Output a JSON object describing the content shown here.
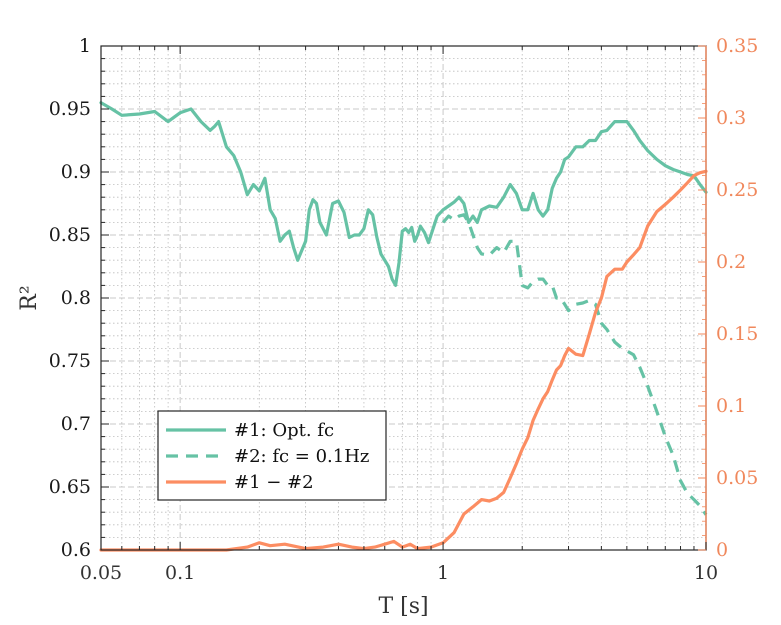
{
  "chart_data": {
    "type": "line",
    "xlabel": "T [s]",
    "ylabel_left": "R²",
    "x_scale": "log",
    "xlim": [
      0.05,
      10
    ],
    "ylim_left": [
      0.6,
      1
    ],
    "ylim_right": [
      0,
      0.35
    ],
    "grid": true,
    "legend_position": "bottom-left",
    "x_ticks": [
      {
        "value": 0.05,
        "label": "0.05"
      },
      {
        "value": 0.1,
        "label": "0.1"
      },
      {
        "value": 1,
        "label": "1"
      },
      {
        "value": 10,
        "label": "10"
      }
    ],
    "y_left_ticks": [
      "0.6",
      "0.65",
      "0.7",
      "0.75",
      "0.8",
      "0.85",
      "0.9",
      "0.95",
      "1"
    ],
    "y_right_ticks": [
      "0",
      "0.05",
      "0.1",
      "0.15",
      "0.2",
      "0.25",
      "0.3",
      "0.35"
    ],
    "colors": {
      "green": "#66c2a5",
      "orange": "#fc8d62",
      "right_axis": "#f0885c"
    },
    "series": [
      {
        "name": "#1: Opt. fc",
        "axis": "left",
        "style": "solid",
        "color": "#66c2a5",
        "x": [
          0.05,
          0.055,
          0.06,
          0.07,
          0.08,
          0.09,
          0.1,
          0.11,
          0.12,
          0.13,
          0.135,
          0.14,
          0.15,
          0.16,
          0.17,
          0.18,
          0.19,
          0.2,
          0.21,
          0.22,
          0.23,
          0.24,
          0.25,
          0.26,
          0.27,
          0.28,
          0.3,
          0.31,
          0.32,
          0.33,
          0.34,
          0.36,
          0.38,
          0.4,
          0.42,
          0.44,
          0.46,
          0.48,
          0.5,
          0.52,
          0.54,
          0.56,
          0.58,
          0.6,
          0.62,
          0.64,
          0.66,
          0.68,
          0.7,
          0.72,
          0.74,
          0.76,
          0.78,
          0.8,
          0.82,
          0.85,
          0.88,
          0.9,
          0.95,
          1.0,
          1.05,
          1.1,
          1.15,
          1.2,
          1.25,
          1.3,
          1.35,
          1.4,
          1.5,
          1.6,
          1.7,
          1.8,
          1.9,
          2.0,
          2.1,
          2.2,
          2.3,
          2.4,
          2.5,
          2.6,
          2.7,
          2.8,
          2.9,
          3.0,
          3.2,
          3.4,
          3.6,
          3.8,
          4.0,
          4.2,
          4.5,
          4.8,
          5.0,
          5.3,
          5.6,
          6.0,
          6.5,
          7.0,
          7.5,
          8.0,
          8.5,
          9.0,
          9.5,
          10.0
        ],
        "y": [
          0.955,
          0.95,
          0.945,
          0.946,
          0.948,
          0.94,
          0.947,
          0.95,
          0.94,
          0.933,
          0.936,
          0.94,
          0.92,
          0.913,
          0.9,
          0.882,
          0.89,
          0.885,
          0.895,
          0.87,
          0.863,
          0.845,
          0.85,
          0.853,
          0.84,
          0.83,
          0.845,
          0.87,
          0.878,
          0.875,
          0.86,
          0.85,
          0.875,
          0.877,
          0.868,
          0.848,
          0.85,
          0.85,
          0.855,
          0.87,
          0.866,
          0.848,
          0.835,
          0.83,
          0.825,
          0.815,
          0.81,
          0.828,
          0.853,
          0.855,
          0.852,
          0.856,
          0.845,
          0.85,
          0.857,
          0.852,
          0.844,
          0.85,
          0.865,
          0.87,
          0.873,
          0.876,
          0.88,
          0.875,
          0.86,
          0.865,
          0.86,
          0.87,
          0.873,
          0.872,
          0.88,
          0.89,
          0.883,
          0.87,
          0.87,
          0.883,
          0.87,
          0.865,
          0.87,
          0.887,
          0.895,
          0.9,
          0.91,
          0.912,
          0.92,
          0.92,
          0.925,
          0.925,
          0.932,
          0.933,
          0.94,
          0.94,
          0.94,
          0.933,
          0.925,
          0.917,
          0.91,
          0.905,
          0.902,
          0.9,
          0.898,
          0.897,
          0.89,
          0.884
        ]
      },
      {
        "name": "#2: fc = 0.1Hz",
        "axis": "left",
        "style": "dashed",
        "color": "#66c2a5",
        "x": [
          1.0,
          1.05,
          1.1,
          1.15,
          1.2,
          1.25,
          1.3,
          1.35,
          1.4,
          1.5,
          1.6,
          1.7,
          1.8,
          1.9,
          2.0,
          2.1,
          2.2,
          2.3,
          2.4,
          2.5,
          2.6,
          2.7,
          2.8,
          2.9,
          3.0,
          3.2,
          3.4,
          3.6,
          3.8,
          4.0,
          4.2,
          4.5,
          4.8,
          5.0,
          5.3,
          5.6,
          6.0,
          6.5,
          7.0,
          7.5,
          8.0,
          8.5,
          9.0,
          9.5,
          10.0
        ],
        "y": [
          0.86,
          0.865,
          0.862,
          0.865,
          0.866,
          0.86,
          0.85,
          0.84,
          0.835,
          0.834,
          0.84,
          0.836,
          0.845,
          0.845,
          0.81,
          0.808,
          0.813,
          0.815,
          0.815,
          0.81,
          0.81,
          0.8,
          0.8,
          0.795,
          0.79,
          0.795,
          0.796,
          0.798,
          0.795,
          0.78,
          0.775,
          0.765,
          0.76,
          0.758,
          0.755,
          0.745,
          0.73,
          0.71,
          0.69,
          0.675,
          0.655,
          0.645,
          0.64,
          0.635,
          0.628
        ]
      },
      {
        "name": "#1 − #2",
        "axis": "right",
        "style": "solid",
        "color": "#fc8d62",
        "x": [
          0.05,
          0.1,
          0.15,
          0.18,
          0.2,
          0.22,
          0.25,
          0.3,
          0.35,
          0.4,
          0.45,
          0.5,
          0.55,
          0.6,
          0.65,
          0.7,
          0.75,
          0.8,
          0.9,
          1.0,
          1.1,
          1.2,
          1.3,
          1.4,
          1.5,
          1.6,
          1.7,
          1.8,
          1.9,
          2.0,
          2.1,
          2.2,
          2.3,
          2.4,
          2.5,
          2.6,
          2.7,
          2.8,
          2.9,
          3.0,
          3.2,
          3.4,
          3.6,
          3.8,
          4.0,
          4.2,
          4.5,
          4.8,
          5.0,
          5.3,
          5.6,
          6.0,
          6.5,
          7.0,
          7.5,
          8.0,
          8.5,
          9.0,
          9.5,
          10.0
        ],
        "y": [
          0.0,
          0.0,
          0.0,
          0.002,
          0.005,
          0.003,
          0.004,
          0.001,
          0.002,
          0.004,
          0.002,
          0.001,
          0.002,
          0.004,
          0.006,
          0.002,
          0.004,
          0.001,
          0.002,
          0.005,
          0.012,
          0.025,
          0.03,
          0.035,
          0.034,
          0.036,
          0.04,
          0.05,
          0.06,
          0.07,
          0.078,
          0.09,
          0.098,
          0.105,
          0.11,
          0.118,
          0.125,
          0.128,
          0.135,
          0.14,
          0.136,
          0.135,
          0.15,
          0.165,
          0.175,
          0.19,
          0.195,
          0.195,
          0.2,
          0.205,
          0.21,
          0.225,
          0.235,
          0.24,
          0.245,
          0.25,
          0.255,
          0.26,
          0.262,
          0.263
        ]
      }
    ],
    "legend": [
      {
        "label": "#1: Opt. fc",
        "series": 0
      },
      {
        "label": "#2: fc = 0.1Hz",
        "series": 1
      },
      {
        "label": "#1 − #2",
        "series": 2
      }
    ]
  }
}
